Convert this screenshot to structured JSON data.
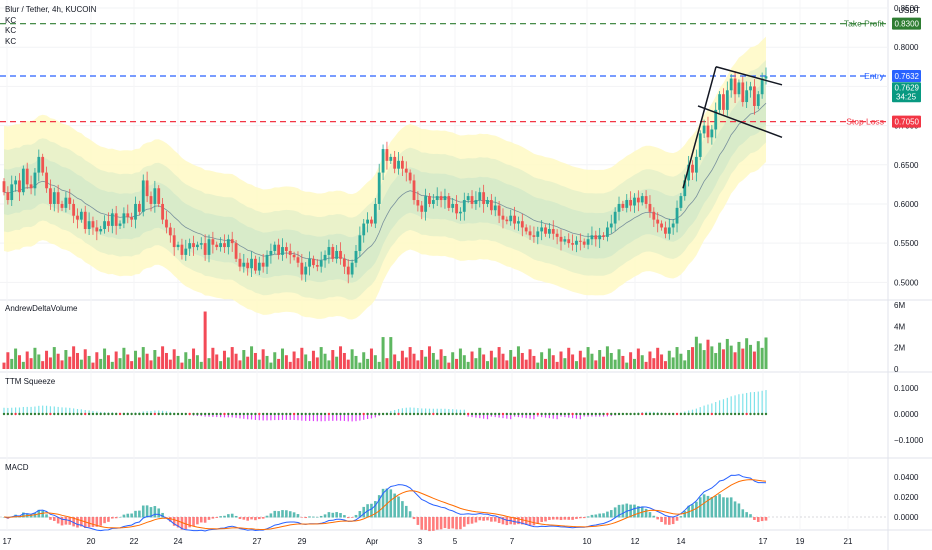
{
  "header": {
    "title": "Blur / Tether, 4h, KUCOIN",
    "indicators": [
      "KC",
      "KC",
      "KC"
    ],
    "axis_unit": "USDT"
  },
  "chart_data": {
    "type": "candlestick",
    "price_axis": {
      "ticks": [
        "0.8500",
        "0.8000",
        "0.7500",
        "0.7000",
        "0.6500",
        "0.6000",
        "0.5500",
        "0.5000"
      ],
      "ylim": [
        0.48,
        0.85
      ]
    },
    "x_ticks": [
      "17",
      "20",
      "22",
      "24",
      "27",
      "29",
      "Apr",
      "3",
      "5",
      "7",
      "10",
      "12",
      "14",
      "17",
      "19",
      "21"
    ],
    "levels": [
      {
        "name": "Take Profit",
        "value": 0.83,
        "label": "0.8300",
        "color": "#2e7d32"
      },
      {
        "name": "Entry",
        "value": 0.7632,
        "label": "0.7632",
        "color": "#2962ff"
      },
      {
        "name": "Stop Loss",
        "value": 0.705,
        "label": "0.7050",
        "color": "#f23645"
      }
    ],
    "last_price": {
      "value": 0.7629,
      "label": "0.7629",
      "countdown": "34:25",
      "color": "#089981"
    },
    "pattern": "bull flag",
    "candles": [
      [
        0.629,
        0.615
      ],
      [
        0.615,
        0.605
      ],
      [
        0.605,
        0.625
      ],
      [
        0.625,
        0.63
      ],
      [
        0.63,
        0.615
      ],
      [
        0.615,
        0.645
      ],
      [
        0.645,
        0.625
      ],
      [
        0.625,
        0.62
      ],
      [
        0.62,
        0.64
      ],
      [
        0.64,
        0.66
      ],
      [
        0.66,
        0.64
      ],
      [
        0.64,
        0.62
      ],
      [
        0.62,
        0.6
      ],
      [
        0.6,
        0.615
      ],
      [
        0.615,
        0.6
      ],
      [
        0.6,
        0.595
      ],
      [
        0.595,
        0.608
      ],
      [
        0.608,
        0.6
      ],
      [
        0.6,
        0.585
      ],
      [
        0.585,
        0.58
      ],
      [
        0.58,
        0.59
      ],
      [
        0.59,
        0.568
      ],
      [
        0.568,
        0.578
      ],
      [
        0.578,
        0.57
      ],
      [
        0.57,
        0.565
      ],
      [
        0.565,
        0.568
      ],
      [
        0.568,
        0.578
      ],
      [
        0.578,
        0.572
      ],
      [
        0.572,
        0.588
      ],
      [
        0.588,
        0.572
      ],
      [
        0.572,
        0.575
      ],
      [
        0.575,
        0.588
      ],
      [
        0.588,
        0.583
      ],
      [
        0.583,
        0.58
      ],
      [
        0.58,
        0.6
      ],
      [
        0.6,
        0.59
      ],
      [
        0.59,
        0.63
      ],
      [
        0.63,
        0.61
      ],
      [
        0.61,
        0.6
      ],
      [
        0.6,
        0.62
      ],
      [
        0.62,
        0.6
      ],
      [
        0.6,
        0.58
      ],
      [
        0.58,
        0.57
      ],
      [
        0.57,
        0.56
      ],
      [
        0.56,
        0.545
      ],
      [
        0.545,
        0.548
      ],
      [
        0.548,
        0.535
      ],
      [
        0.535,
        0.543
      ],
      [
        0.543,
        0.55
      ],
      [
        0.55,
        0.545
      ],
      [
        0.545,
        0.548
      ],
      [
        0.548,
        0.55
      ],
      [
        0.55,
        0.535
      ],
      [
        0.535,
        0.555
      ],
      [
        0.555,
        0.548
      ],
      [
        0.548,
        0.545
      ],
      [
        0.545,
        0.55
      ],
      [
        0.55,
        0.545
      ],
      [
        0.545,
        0.555
      ],
      [
        0.555,
        0.55
      ],
      [
        0.55,
        0.53
      ],
      [
        0.53,
        0.52
      ],
      [
        0.52,
        0.525
      ],
      [
        0.525,
        0.518
      ],
      [
        0.518,
        0.53
      ],
      [
        0.53,
        0.515
      ],
      [
        0.515,
        0.525
      ],
      [
        0.525,
        0.52
      ],
      [
        0.52,
        0.535
      ],
      [
        0.535,
        0.54
      ],
      [
        0.54,
        0.548
      ],
      [
        0.548,
        0.535
      ],
      [
        0.535,
        0.545
      ],
      [
        0.545,
        0.54
      ],
      [
        0.54,
        0.535
      ],
      [
        0.535,
        0.532
      ],
      [
        0.532,
        0.525
      ],
      [
        0.525,
        0.51
      ],
      [
        0.51,
        0.52
      ],
      [
        0.52,
        0.53
      ],
      [
        0.53,
        0.522
      ],
      [
        0.522,
        0.52
      ],
      [
        0.52,
        0.528
      ],
      [
        0.528,
        0.535
      ],
      [
        0.535,
        0.545
      ],
      [
        0.545,
        0.53
      ],
      [
        0.53,
        0.54
      ],
      [
        0.54,
        0.53
      ],
      [
        0.53,
        0.52
      ],
      [
        0.52,
        0.51
      ],
      [
        0.51,
        0.525
      ],
      [
        0.525,
        0.54
      ],
      [
        0.54,
        0.56
      ],
      [
        0.56,
        0.575
      ],
      [
        0.575,
        0.58
      ],
      [
        0.58,
        0.575
      ],
      [
        0.575,
        0.6
      ],
      [
        0.6,
        0.64
      ],
      [
        0.64,
        0.67
      ],
      [
        0.67,
        0.655
      ],
      [
        0.655,
        0.66
      ],
      [
        0.66,
        0.645
      ],
      [
        0.645,
        0.655
      ],
      [
        0.655,
        0.645
      ],
      [
        0.645,
        0.64
      ],
      [
        0.64,
        0.63
      ],
      [
        0.63,
        0.605
      ],
      [
        0.605,
        0.598
      ],
      [
        0.598,
        0.59
      ],
      [
        0.59,
        0.61
      ],
      [
        0.61,
        0.6
      ],
      [
        0.6,
        0.605
      ],
      [
        0.605,
        0.61
      ],
      [
        0.61,
        0.605
      ],
      [
        0.605,
        0.61
      ],
      [
        0.61,
        0.595
      ],
      [
        0.595,
        0.6
      ],
      [
        0.6,
        0.588
      ],
      [
        0.588,
        0.59
      ],
      [
        0.59,
        0.605
      ],
      [
        0.605,
        0.61
      ],
      [
        0.61,
        0.6
      ],
      [
        0.6,
        0.605
      ],
      [
        0.605,
        0.615
      ],
      [
        0.615,
        0.6
      ],
      [
        0.6,
        0.605
      ],
      [
        0.605,
        0.592
      ],
      [
        0.592,
        0.598
      ],
      [
        0.598,
        0.585
      ],
      [
        0.585,
        0.58
      ],
      [
        0.58,
        0.578
      ],
      [
        0.578,
        0.585
      ],
      [
        0.585,
        0.575
      ],
      [
        0.575,
        0.578
      ],
      [
        0.578,
        0.57
      ],
      [
        0.57,
        0.565
      ],
      [
        0.565,
        0.56
      ],
      [
        0.56,
        0.558
      ],
      [
        0.558,
        0.565
      ],
      [
        0.565,
        0.57
      ],
      [
        0.57,
        0.562
      ],
      [
        0.562,
        0.568
      ],
      [
        0.568,
        0.562
      ],
      [
        0.562,
        0.558
      ],
      [
        0.558,
        0.552
      ],
      [
        0.552,
        0.555
      ],
      [
        0.555,
        0.55
      ],
      [
        0.55,
        0.548
      ],
      [
        0.548,
        0.553
      ],
      [
        0.553,
        0.552
      ],
      [
        0.552,
        0.548
      ],
      [
        0.548,
        0.555
      ],
      [
        0.555,
        0.56
      ],
      [
        0.56,
        0.555
      ],
      [
        0.555,
        0.56
      ],
      [
        0.56,
        0.558
      ],
      [
        0.558,
        0.57
      ],
      [
        0.57,
        0.575
      ],
      [
        0.575,
        0.59
      ],
      [
        0.59,
        0.6
      ],
      [
        0.6,
        0.595
      ],
      [
        0.595,
        0.605
      ],
      [
        0.605,
        0.598
      ],
      [
        0.598,
        0.608
      ],
      [
        0.608,
        0.602
      ],
      [
        0.602,
        0.61
      ],
      [
        0.61,
        0.6
      ],
      [
        0.6,
        0.59
      ],
      [
        0.59,
        0.58
      ],
      [
        0.58,
        0.575
      ],
      [
        0.575,
        0.57
      ],
      [
        0.57,
        0.562
      ],
      [
        0.562,
        0.57
      ],
      [
        0.57,
        0.575
      ],
      [
        0.575,
        0.595
      ],
      [
        0.595,
        0.61
      ],
      [
        0.61,
        0.63
      ],
      [
        0.63,
        0.65
      ],
      [
        0.65,
        0.64
      ],
      [
        0.64,
        0.66
      ],
      [
        0.66,
        0.69
      ],
      [
        0.69,
        0.7
      ],
      [
        0.7,
        0.685
      ],
      [
        0.685,
        0.695
      ],
      [
        0.695,
        0.72
      ],
      [
        0.72,
        0.74
      ],
      [
        0.74,
        0.72
      ],
      [
        0.72,
        0.745
      ],
      [
        0.745,
        0.76
      ],
      [
        0.76,
        0.74
      ],
      [
        0.74,
        0.755
      ],
      [
        0.755,
        0.73
      ],
      [
        0.73,
        0.745
      ],
      [
        0.745,
        0.75
      ],
      [
        0.75,
        0.725
      ],
      [
        0.725,
        0.74
      ],
      [
        0.74,
        0.76
      ],
      [
        0.76,
        0.7629
      ]
    ]
  },
  "panes": {
    "volume": {
      "title": "AndrewDeltaVolume",
      "ticks": [
        "6M",
        "4M",
        "2M",
        "0"
      ]
    },
    "squeeze": {
      "title": "TTM Squeeze",
      "ticks": [
        "0.1000",
        "0.0000",
        "−0.1000"
      ]
    },
    "macd": {
      "title": "MACD",
      "ticks": [
        "0.0400",
        "0.0200",
        "0.0000"
      ]
    }
  },
  "colors": {
    "up": "#26a69a",
    "down": "#ef5350",
    "volume_up": "#4caf50",
    "volume_down": "#f23645",
    "macd_line": "#2962ff",
    "signal_line": "#ff6d00",
    "squeeze_pos": "#7fe3ea",
    "squeeze_neg": "#e040fb",
    "band_outer": "#fff9c4",
    "band_mid": "#dcedc8",
    "band_inner": "#c8e6c9"
  }
}
